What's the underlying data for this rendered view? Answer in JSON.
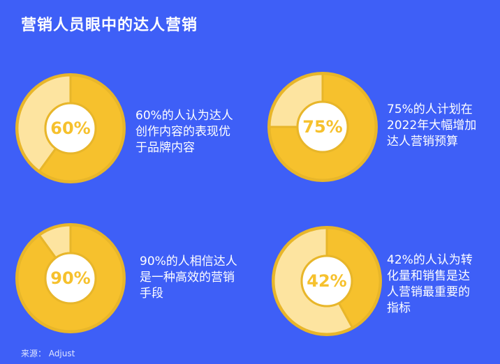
{
  "title": "营销人员眼中的达人营销",
  "source": "来源：  Adjust",
  "colors": {
    "background": "#3e5ff7",
    "primary": "#f6c12d",
    "secondary": "#fde4a0",
    "border": "#e8b62a",
    "center": "#ffffff"
  },
  "chart_data": [
    {
      "type": "pie",
      "percent": 60,
      "label": "60%",
      "caption_lines": [
        "60%的人认为达人",
        "创作内容的表现优",
        "于品牌内容"
      ]
    },
    {
      "type": "pie",
      "percent": 75,
      "label": "75%",
      "caption_lines": [
        "75%的人计划在",
        "2022年大幅增加",
        "达人营销预算"
      ]
    },
    {
      "type": "pie",
      "percent": 90,
      "label": "90%",
      "caption_lines": [
        "90%的人相信达人",
        "是一种高效的营销",
        "手段"
      ]
    },
    {
      "type": "pie",
      "percent": 42,
      "label": "42%",
      "caption_lines": [
        "42%的人认为转",
        "化量和销售是达",
        "人营销最重要的",
        "指标"
      ]
    }
  ]
}
